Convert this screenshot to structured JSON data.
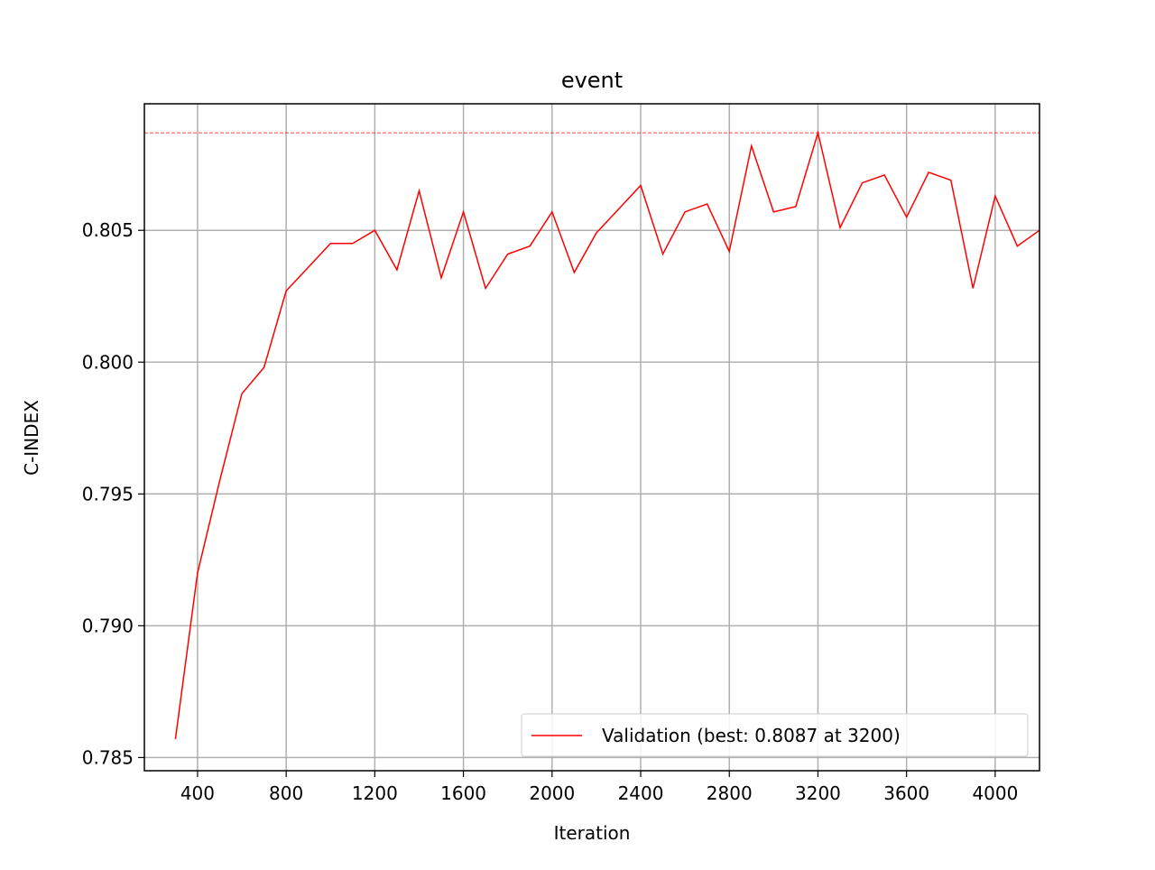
{
  "chart_data": {
    "type": "line",
    "title": "event",
    "xlabel": "Iteration",
    "ylabel": "C-INDEX",
    "xlim": [
      160,
      4200
    ],
    "ylim": [
      0.7845,
      0.8098
    ],
    "xticks": [
      400,
      800,
      1200,
      1600,
      2000,
      2400,
      2800,
      3200,
      3600,
      4000
    ],
    "xtick_labels": [
      "400",
      "800",
      "1200",
      "1600",
      "2000",
      "2400",
      "2800",
      "3200",
      "3600",
      "4000"
    ],
    "yticks": [
      0.785,
      0.79,
      0.795,
      0.8,
      0.805
    ],
    "ytick_labels": [
      "0.785",
      "0.790",
      "0.795",
      "0.800",
      "0.805"
    ],
    "grid": true,
    "legend_position": "lower-right",
    "best_line": {
      "y": 0.8087,
      "color": "#ff0000",
      "style": "dashed"
    },
    "series": [
      {
        "name": "Validation (best: 0.8087 at 3200)",
        "color": "#ff0000",
        "x": [
          300,
          400,
          500,
          600,
          700,
          800,
          900,
          1000,
          1100,
          1200,
          1300,
          1400,
          1500,
          1600,
          1700,
          1800,
          1900,
          2000,
          2100,
          2200,
          2300,
          2400,
          2500,
          2600,
          2700,
          2800,
          2900,
          3000,
          3100,
          3200,
          3300,
          3400,
          3500,
          3600,
          3700,
          3800,
          3900,
          4000,
          4100,
          4200
        ],
        "y": [
          0.7857,
          0.792,
          0.7955,
          0.7988,
          0.7998,
          0.8027,
          0.8036,
          0.8045,
          0.8045,
          0.805,
          0.8035,
          0.8065,
          0.8032,
          0.8057,
          0.8028,
          0.8041,
          0.8044,
          0.8057,
          0.8034,
          0.8049,
          0.8058,
          0.8067,
          0.8041,
          0.8057,
          0.806,
          0.8042,
          0.8082,
          0.8057,
          0.8059,
          0.8087,
          0.8051,
          0.8068,
          0.8071,
          0.8055,
          0.8072,
          0.8069,
          0.8028,
          0.8063,
          0.8044,
          0.805
        ]
      }
    ]
  }
}
